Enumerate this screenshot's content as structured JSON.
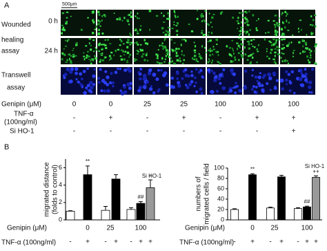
{
  "panel_a": {
    "label": "A",
    "scale_bar": "500μm",
    "wound_label": [
      "Wounded",
      "healing",
      "assay"
    ],
    "times": [
      "0 h",
      "24 h"
    ],
    "transwell_label": [
      "Transwell",
      "assay"
    ],
    "conditions": {
      "genipin": {
        "label": "Genipin (μM)",
        "values": [
          "0",
          "0",
          "25",
          "25",
          "100",
          "100",
          "100"
        ]
      },
      "tnf": {
        "label": [
          "TNF-α",
          "(100ng/ml)"
        ],
        "values": [
          "-",
          "+",
          "-",
          "+",
          "-",
          "+",
          "+"
        ]
      },
      "si_ho1": {
        "label": "Si HO-1",
        "values": [
          "-",
          "-",
          "-",
          "-",
          "-",
          "-",
          "+"
        ]
      }
    }
  },
  "panel_b": {
    "label": "B"
  },
  "chart_data": [
    {
      "type": "bar",
      "y_label": [
        "migrated distance",
        "(folds to control)"
      ],
      "values": [
        1,
        5.2,
        1.1,
        4.7,
        1.2,
        1.9,
        3.7
      ],
      "errors": [
        0.05,
        1.0,
        0.45,
        0.5,
        0.2,
        0.2,
        0.9
      ],
      "colors": [
        "#ffffff",
        "#000000",
        "#ffffff",
        "#000000",
        "#ffffff",
        "#000000",
        "#999999"
      ],
      "bar_labels": [
        null,
        "**",
        null,
        null,
        null,
        "##",
        "+"
      ],
      "annotation": "Si HO-1",
      "ylim": [
        0,
        7
      ],
      "yticks": [
        0,
        2,
        4,
        6
      ],
      "genipin_label": "Genipin (μM)",
      "genipin_values": [
        "0",
        "25",
        "100"
      ],
      "tnf_label": "TNF-α (100ng/ml)",
      "tnf_values": [
        "-",
        "+",
        "-",
        "+",
        "-",
        "+",
        "+"
      ]
    },
    {
      "type": "bar",
      "y_label": [
        "numbers of",
        "migrated cells / field"
      ],
      "values": [
        20,
        87,
        23,
        83,
        22,
        25,
        82
      ],
      "errors": [
        1.5,
        2,
        1.5,
        3,
        1.5,
        1.5,
        3
      ],
      "colors": [
        "#ffffff",
        "#000000",
        "#ffffff",
        "#000000",
        "#ffffff",
        "#000000",
        "#999999"
      ],
      "bar_labels": [
        null,
        "**",
        null,
        null,
        null,
        "##",
        "++"
      ],
      "annotation": "Si HO-1",
      "ylim": [
        0,
        100
      ],
      "yticks": [
        0,
        20,
        40,
        60,
        80,
        100
      ],
      "genipin_label": "Genipin (μM)",
      "genipin_values": [
        "0",
        "25",
        "100"
      ],
      "tnf_label": "TNF-α (100ng/ml)",
      "tnf_values": [
        "-",
        "+",
        "-",
        "+",
        "-",
        "+",
        "+"
      ]
    }
  ]
}
